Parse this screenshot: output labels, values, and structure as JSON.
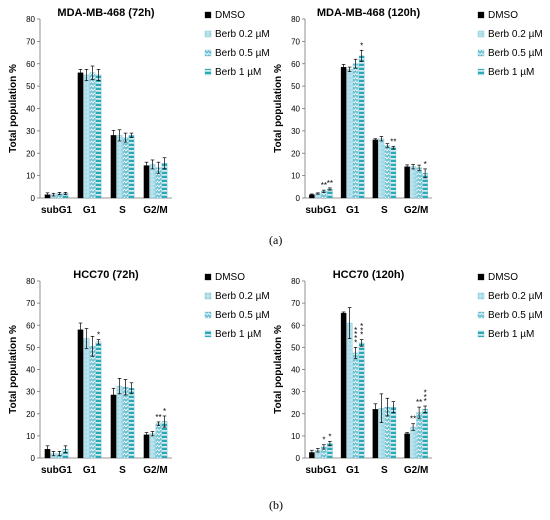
{
  "panel_labels": [
    "(a)",
    "(b)"
  ],
  "colors": {
    "DMSO": "#000000",
    "Berb 0.2 µM": "#b7e3ee",
    "Berb 0.5 µM": "#6cc3d6",
    "Berb 1 µM": "#2aa8b8"
  },
  "chart_data": [
    {
      "type": "bar",
      "title": "MDA-MB-468 (72h)",
      "ylabel": "Total population %",
      "xlabel": "",
      "ylim": [
        0,
        80
      ],
      "yticks": [
        0,
        10,
        20,
        30,
        40,
        50,
        60,
        70,
        80
      ],
      "categories": [
        "subG1",
        "G1",
        "S",
        "G2/M"
      ],
      "legend_position": "right",
      "series": [
        {
          "name": "DMSO",
          "values": [
            1.5,
            56,
            28,
            14.5
          ],
          "errors": [
            0.8,
            1.5,
            2.2,
            1.5
          ],
          "sig": [
            "",
            "",
            "",
            ""
          ]
        },
        {
          "name": "Berb 0.2 µM",
          "values": [
            1.5,
            55,
            28,
            15
          ],
          "errors": [
            0.6,
            2.5,
            2.5,
            2.0
          ],
          "sig": [
            "",
            "",
            "",
            ""
          ]
        },
        {
          "name": "Berb 0.5 µM",
          "values": [
            2,
            56,
            27,
            13.5
          ],
          "errors": [
            0.5,
            3.0,
            2.0,
            2.5
          ],
          "sig": [
            "",
            "",
            "",
            ""
          ]
        },
        {
          "name": "Berb 1 µM",
          "values": [
            2,
            55,
            28,
            15.5
          ],
          "errors": [
            0.5,
            2.5,
            1.0,
            2.5
          ],
          "sig": [
            "",
            "",
            "",
            ""
          ]
        }
      ]
    },
    {
      "type": "bar",
      "title": "MDA-MB-468 (120h)",
      "ylabel": "Total population %",
      "xlabel": "",
      "ylim": [
        0,
        80
      ],
      "yticks": [
        0,
        10,
        20,
        30,
        40,
        50,
        60,
        70,
        80
      ],
      "categories": [
        "subG1",
        "G1",
        "S",
        "G2/M"
      ],
      "legend_position": "right",
      "series": [
        {
          "name": "DMSO",
          "values": [
            1.5,
            58.5,
            26,
            14
          ],
          "errors": [
            0.3,
            1.2,
            0.5,
            0.8
          ],
          "sig": [
            "",
            "",
            "",
            ""
          ]
        },
        {
          "name": "Berb 0.2 µM",
          "values": [
            2,
            57.5,
            26.5,
            14
          ],
          "errors": [
            0.3,
            1.0,
            1.0,
            1.0
          ],
          "sig": [
            "",
            "",
            "",
            ""
          ]
        },
        {
          "name": "Berb 0.5 µM",
          "values": [
            3,
            60,
            23.5,
            13.5
          ],
          "errors": [
            0.5,
            2.0,
            0.8,
            1.2
          ],
          "sig": [
            "**",
            "",
            "",
            ""
          ]
        },
        {
          "name": "Berb 1 µM",
          "values": [
            4,
            63.5,
            22.5,
            11
          ],
          "errors": [
            0.5,
            2.5,
            0.6,
            2.0
          ],
          "sig": [
            "**",
            "*",
            "**",
            "*"
          ]
        }
      ]
    },
    {
      "type": "bar",
      "title": "HCC70 (72h)",
      "ylabel": "Total population %",
      "xlabel": "",
      "ylim": [
        0,
        80
      ],
      "yticks": [
        0,
        10,
        20,
        30,
        40,
        50,
        60,
        70,
        80
      ],
      "categories": [
        "subG1",
        "G1",
        "S",
        "G2/M"
      ],
      "legend_position": "right",
      "series": [
        {
          "name": "DMSO",
          "values": [
            4,
            58,
            28.5,
            10.5
          ],
          "errors": [
            1.5,
            3.0,
            3.0,
            1.0
          ],
          "sig": [
            "",
            "",
            "",
            ""
          ]
        },
        {
          "name": "Berb 0.2 µM",
          "values": [
            2,
            54,
            32.5,
            11
          ],
          "errors": [
            1.0,
            4.5,
            3.5,
            1.0
          ],
          "sig": [
            "",
            "",
            "",
            ""
          ]
        },
        {
          "name": "Berb 0.5 µM",
          "values": [
            2,
            50.5,
            32,
            15.5
          ],
          "errors": [
            1.0,
            4.5,
            3.5,
            0.8
          ],
          "sig": [
            "",
            "",
            "",
            "**"
          ]
        },
        {
          "name": "Berb 1 µM",
          "values": [
            4,
            52.5,
            31.5,
            16.5
          ],
          "errors": [
            1.5,
            1.0,
            2.5,
            2.5
          ],
          "sig": [
            "",
            "*",
            "",
            "*"
          ]
        }
      ]
    },
    {
      "type": "bar",
      "title": "HCC70 (120h)",
      "ylabel": "Total population %",
      "xlabel": "",
      "ylim": [
        0,
        80
      ],
      "yticks": [
        0,
        10,
        20,
        30,
        40,
        50,
        60,
        70,
        80
      ],
      "categories": [
        "subG1",
        "G1",
        "S",
        "G2/M"
      ],
      "legend_position": "right",
      "series": [
        {
          "name": "DMSO",
          "values": [
            2.5,
            65.5,
            22,
            11
          ],
          "errors": [
            1.0,
            0.5,
            2.5,
            0.5
          ],
          "sig": [
            "",
            "",
            "",
            ""
          ]
        },
        {
          "name": "Berb 0.2 µM",
          "values": [
            3.5,
            61,
            22.5,
            14
          ],
          "errors": [
            0.8,
            7.0,
            6.5,
            1.5
          ],
          "sig": [
            "",
            "",
            "",
            "**"
          ]
        },
        {
          "name": "Berb 0.5 µM",
          "values": [
            5,
            47.5,
            23,
            20.5
          ],
          "errors": [
            1.0,
            2.5,
            4.0,
            2.5
          ],
          "sig": [
            "*",
            "****",
            "",
            "**"
          ]
        },
        {
          "name": "Berb 1 µM",
          "values": [
            6.5,
            52,
            23,
            22
          ],
          "errors": [
            1.0,
            1.5,
            2.5,
            1.5
          ],
          "sig": [
            "*",
            "***",
            "",
            "***"
          ]
        }
      ]
    }
  ]
}
